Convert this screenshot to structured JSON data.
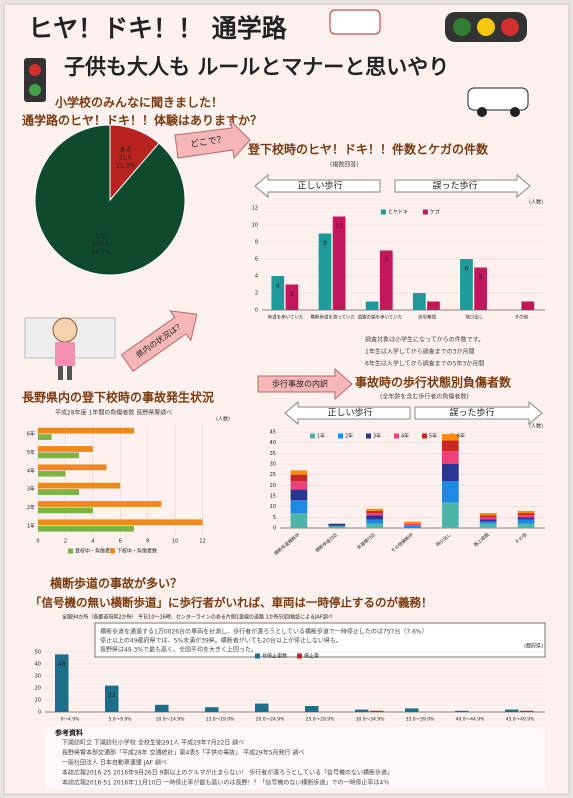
{
  "header": {
    "title": "ヒヤ！ドキ！！ 通学路",
    "subtitle": "子供も大人も ルールとマナーと思いやり"
  },
  "survey": {
    "line1": "小学校のみんなに聞きました！",
    "line2": "通学路のヒヤ！ドキ！！体験はありますか？"
  },
  "callouts": [
    "どこで？",
    "県内の状況は？",
    "歩行事故の内訳"
  ],
  "notes": [
    "調査対象は小学生になってからの件数です。",
    "1年生は入学してから調査までの3か月間",
    "6年生は入学してから調査までの5年3か月間"
  ],
  "crossing": {
    "heading": "横断歩道の事故が多い？",
    "message": "「信号機の無い横断歩道」に歩行者がいれば、車両は一時停止するのが義務！",
    "source": "全国94か所（各都道府県2か所） 平日10～16時、センターラインのある片側1車線の道路 1か所50回検証によるJAF調べ",
    "box": [
      "横断歩道を通過する1万0026台の車両を計測し、歩行者が渡ろうとしている横断歩道で一時停止したのは757台（7.6%）",
      "停止以上の49都府県では、5%未満が39県。横断者がいても20台以上が停止しない県も。",
      "長野県は49.3%で最も高く、全国平均を大きく上回った。"
    ]
  },
  "references": [
    "参考資料",
    "下諏訪町立 下諏訪社小学校 全校生徒291人 平成29年7月22日 調べ",
    "長野県警本部交通部「平成28年 交通統計」第4表5「子供の事故」 平成29年5月発行 調べ",
    "一般社団法人 日本自動車連盟 JAF 調べ",
    "本誌広報2016-25 2016年9月26日 9割以上のクルマが止まらない！ 歩行者が渡ろうとしている「信号機のない横断歩道」",
    "本誌広報2016-51 2016年11月10日 一時停止率が最も高いのは長野！？「信号機のない横断歩道」での一時停止率は4％"
  ],
  "chart_data": [
    {
      "type": "pie",
      "categories": [
        "ある",
        "ない"
      ],
      "count_labels": [
        "31人",
        "259人"
      ],
      "values": [
        11.3,
        88.7
      ],
      "value_labels": [
        "11.3%",
        "88.7%"
      ],
      "colors": [
        "#b8231f",
        "#0f4a2e"
      ]
    },
    {
      "type": "bar",
      "title": "登下校時のヒヤ！ドキ！！件数とケガの件数",
      "subtitle": "(複数回答)",
      "ylabel": "(人数)",
      "group_labels": [
        "正しい歩行",
        "誤った歩行"
      ],
      "categories": [
        "歩道を歩いていた",
        "横断歩道を渡っていた",
        "道路の端を歩いていた",
        "信号無視",
        "飛び出し",
        "その他"
      ],
      "series": [
        {
          "name": "ヒヤドキ",
          "color": "#1f9a9a",
          "values": [
            4,
            9,
            1,
            2,
            6,
            0
          ]
        },
        {
          "name": "ケガ",
          "color": "#c2185b",
          "values": [
            3,
            11,
            7,
            1,
            5,
            1
          ]
        }
      ],
      "ylim": [
        0,
        12
      ],
      "yticks": [
        0,
        2,
        4,
        6,
        8,
        10,
        12
      ],
      "grid": true
    },
    {
      "type": "hbar",
      "title": "長野県内の登下校時の事故発生状況",
      "subtitle": "平成28年度 1年間の負傷者数 長野県警調べ",
      "xlabel": "(人数)",
      "categories": [
        "1年",
        "2年",
        "3年",
        "4年",
        "5年",
        "6年"
      ],
      "series": [
        {
          "name": "登校中・負傷者数",
          "color": "#7cb342",
          "values": [
            7,
            4,
            3,
            2,
            3,
            1
          ]
        },
        {
          "name": "下校中・負傷者数",
          "color": "#ef8a1a",
          "values": [
            12,
            9,
            6,
            5,
            4,
            7
          ]
        }
      ],
      "xlim": [
        0,
        14
      ],
      "xticks": [
        0,
        2,
        4,
        6,
        8,
        10,
        12
      ],
      "grid": true
    },
    {
      "type": "stacked_bar",
      "title": "事故時の歩行状態別負傷者数",
      "subtitle": "(全年齢を含む歩行者の負傷者数)",
      "ylabel": "(人数)",
      "group_labels": [
        "正しい歩行",
        "誤った歩行"
      ],
      "categories": [
        "横断歩道横断中",
        "横断歩道付近",
        "歩道橋付近",
        "その他横断中",
        "飛び出し",
        "路上遊戯",
        "その他"
      ],
      "series": [
        {
          "name": "1年",
          "color": "#4db6ac",
          "values": [
            7,
            1,
            2,
            0,
            12,
            2,
            2
          ]
        },
        {
          "name": "2年",
          "color": "#1e88e5",
          "values": [
            6,
            0,
            2,
            1,
            10,
            1,
            2
          ]
        },
        {
          "name": "3年",
          "color": "#283593",
          "values": [
            5,
            1,
            2,
            0,
            8,
            1,
            1
          ]
        },
        {
          "name": "4年",
          "color": "#ec407a",
          "values": [
            4,
            0,
            1,
            1,
            6,
            1,
            1
          ]
        },
        {
          "name": "5年",
          "color": "#c62828",
          "values": [
            3,
            0,
            1,
            0,
            5,
            1,
            1
          ]
        },
        {
          "name": "6年",
          "color": "#fb8c00",
          "values": [
            2,
            0,
            1,
            1,
            3,
            1,
            1
          ]
        }
      ],
      "ylim": [
        0,
        45
      ],
      "yticks": [
        0,
        5,
        10,
        15,
        20,
        25,
        30,
        35,
        40,
        45
      ],
      "grid": true
    },
    {
      "type": "bar",
      "ylabel": "(都府県)",
      "categories": [
        "0～4.9%",
        "5.0～9.9%",
        "10.0～14.9%",
        "15.0～19.9%",
        "20.0～24.9%",
        "25.0～29.9%",
        "30.0～34.9%",
        "35.0～39.9%",
        "40.0～44.9%",
        "45.0～49.9%"
      ],
      "series": [
        {
          "name": "非停止車数",
          "color": "#1b6f8a",
          "values": [
            48,
            22,
            6,
            4,
            7,
            5,
            2,
            3,
            1,
            2
          ]
        },
        {
          "name": "停止車",
          "color": "#c62828",
          "values": [
            0,
            0,
            0,
            0,
            0,
            0,
            1,
            0,
            0,
            1
          ]
        }
      ],
      "ylim": [
        0,
        50
      ],
      "yticks": [
        0,
        10,
        20,
        30,
        40,
        50
      ],
      "grid": true
    }
  ]
}
